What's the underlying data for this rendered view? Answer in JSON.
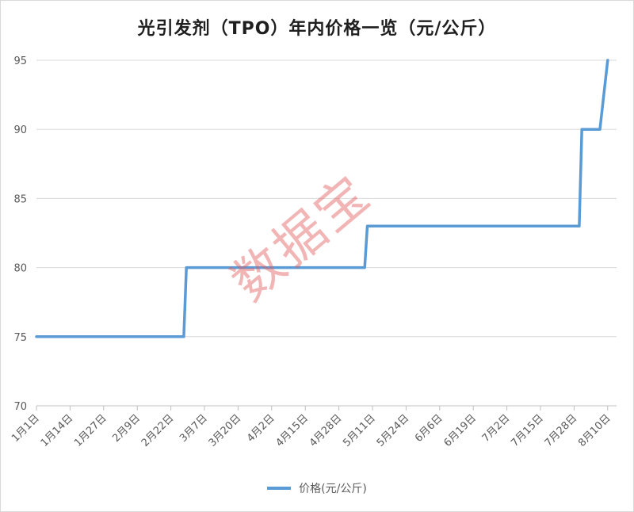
{
  "chart_data": {
    "type": "line",
    "title": "光引发剂（TPO）年内价格一览（元/公斤）",
    "series": [
      {
        "name": "价格(元/公斤)",
        "color": "#5b9bd5",
        "points": [
          [
            "2023-01-01",
            75
          ],
          [
            "2023-02-27",
            75
          ],
          [
            "2023-02-28",
            80
          ],
          [
            "2023-05-08",
            80
          ],
          [
            "2023-05-09",
            83
          ],
          [
            "2023-07-30",
            83
          ],
          [
            "2023-07-31",
            90
          ],
          [
            "2023-08-07",
            90
          ],
          [
            "2023-08-10",
            95
          ]
        ]
      }
    ],
    "x_ticks": [
      "1月1日",
      "1月14日",
      "1月27日",
      "2月9日",
      "2月22日",
      "3月7日",
      "3月20日",
      "4月2日",
      "4月15日",
      "4月28日",
      "5月11日",
      "5月24日",
      "6月6日",
      "6月19日",
      "7月2日",
      "7月15日",
      "7月28日",
      "8月10日"
    ],
    "y_ticks": [
      70,
      75,
      80,
      85,
      90,
      95
    ],
    "ylim": [
      70,
      95
    ],
    "xlabel": "",
    "ylabel": "",
    "grid": "horizontal",
    "legend": "bottom"
  },
  "watermark": "数据宝"
}
